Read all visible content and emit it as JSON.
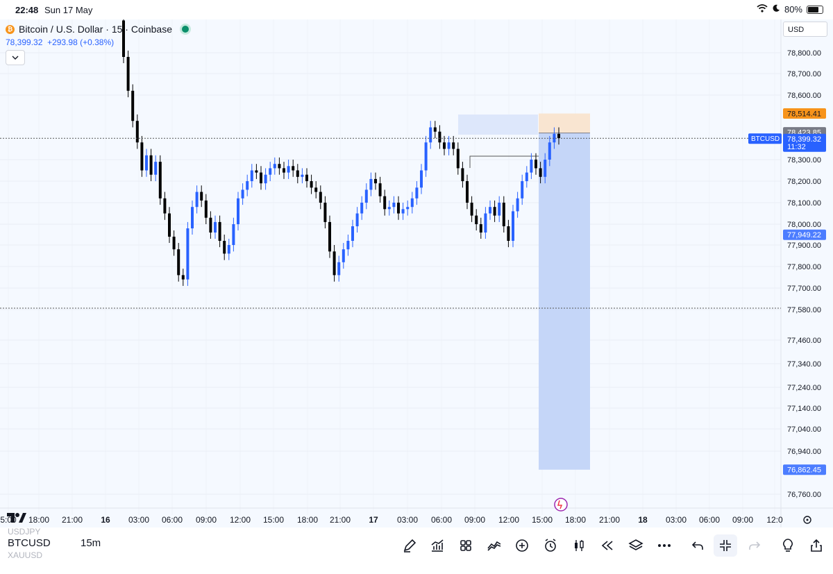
{
  "status": {
    "time": "22:48",
    "date": "Sun 17 May",
    "battery": "80%",
    "battery_level": 0.8
  },
  "legend": {
    "title": "Bitcoin / U.S. Dollar · 15 · Coinbase",
    "price": "78,399.32",
    "change": "+293.98 (+0.38%)"
  },
  "currency": "USD",
  "price_axis": {
    "ticks": [
      "78,800.00",
      "78,700.00",
      "78,600.00",
      "78,300.00",
      "78,200.00",
      "78,100.00",
      "78,000.00",
      "77,900.00",
      "77,800.00",
      "77,700.00",
      "77,580.00",
      "77,460.00",
      "77,340.00",
      "77,240.00",
      "77,140.00",
      "77,040.00",
      "76,940.00",
      "76,760.00"
    ],
    "labels": {
      "target": "78,514.41",
      "entry": "78,423.85",
      "last": "78,399.32",
      "countdown": "11:32",
      "low": "77,949.22",
      "stop": "76,862.45",
      "symbol": "BTCUSD"
    }
  },
  "time_axis": [
    "5:00",
    "18:00",
    "21:00",
    "16",
    "03:00",
    "06:00",
    "09:00",
    "12:00",
    "15:00",
    "18:00",
    "21:00",
    "17",
    "03:00",
    "06:00",
    "09:00",
    "12:00",
    "15:00",
    "18:00",
    "21:00",
    "18",
    "03:00",
    "06:00",
    "09:00",
    "12:0"
  ],
  "bottom": {
    "prev_symbol": "USDJPY",
    "symbol": "BTCUSD",
    "next_symbol": "XAUUSD",
    "interval": "15m"
  },
  "colors": {
    "up": "#2962ff",
    "down": "#000000",
    "accent": "#2962ff",
    "target": "#f7931a"
  },
  "chart_data": {
    "type": "candlestick",
    "symbol": "BTCUSD",
    "interval": "15",
    "last_price": 78399.32,
    "close_series": [
      78780,
      78620,
      78480,
      78380,
      78250,
      78320,
      78230,
      78290,
      78120,
      78050,
      77940,
      77880,
      77760,
      77740,
      77980,
      78080,
      78150,
      78110,
      78030,
      77960,
      78010,
      77920,
      77860,
      77900,
      78000,
      78120,
      78160,
      78200,
      78250,
      78240,
      78190,
      78230,
      78260,
      78280,
      78260,
      78240,
      78270,
      78250,
      78220,
      78230,
      78200,
      78170,
      78150,
      78100,
      78010,
      77870,
      77760,
      77820,
      77880,
      77920,
      77990,
      78050,
      78100,
      78160,
      78210,
      78190,
      78130,
      78070,
      78080,
      78100,
      78050,
      78070,
      78080,
      78120,
      78170,
      78250,
      78380,
      78450,
      78430,
      78380,
      78350,
      78380,
      78350,
      78260,
      78200,
      78100,
      78040,
      78000,
      77960,
      78050,
      78080,
      78040,
      78100,
      77990,
      77920,
      78060,
      78120,
      78200,
      78240,
      78300,
      78260,
      78220,
      78300,
      78380,
      78420,
      78400
    ]
  }
}
